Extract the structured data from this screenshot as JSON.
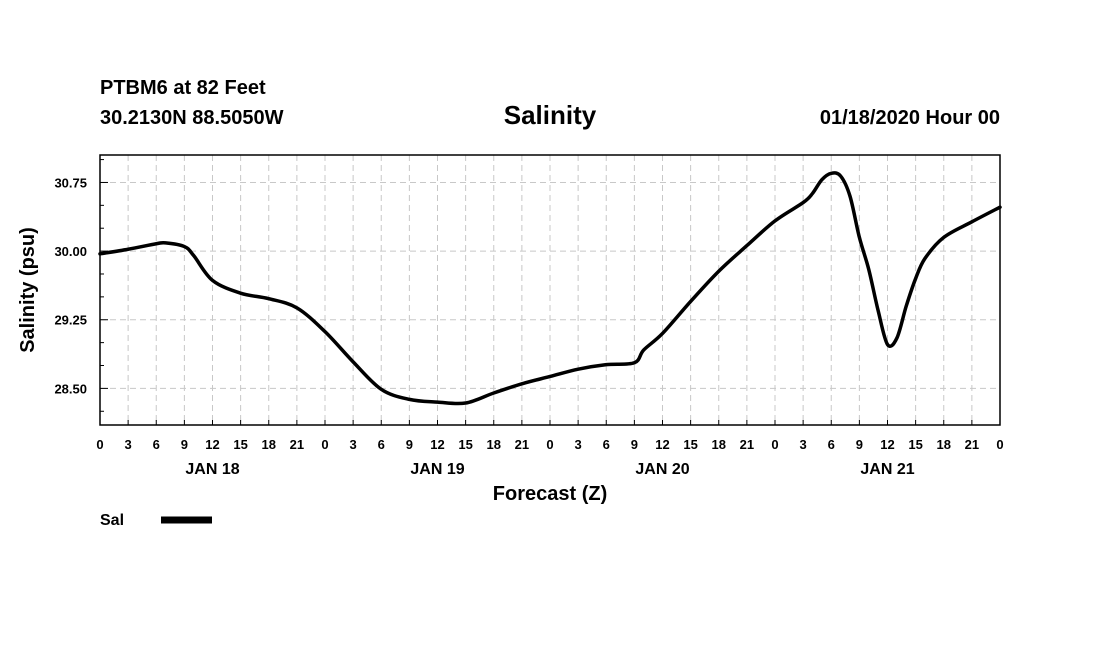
{
  "header": {
    "station": "PTBM6 at 82 Feet",
    "coords": "30.2130N 88.5050W",
    "title": "Salinity",
    "datetime": "01/18/2020 Hour 00"
  },
  "legend": {
    "label": "Sal",
    "color": "#000000"
  },
  "chart_data": {
    "type": "line",
    "title": "Salinity",
    "xlabel": "Forecast (Z)",
    "ylabel": "Salinity (psu)",
    "x_unit": "forecast hours from 01/18/2020 00Z",
    "xlim": [
      0,
      96
    ],
    "ylim": [
      28.1,
      31.05
    ],
    "y_ticks": [
      28.5,
      29.25,
      30.0,
      30.75
    ],
    "y_tick_labels": [
      "28.50",
      "29.25",
      "30.00",
      "30.75"
    ],
    "x_ticks": [
      0,
      3,
      6,
      9,
      12,
      15,
      18,
      21,
      24,
      27,
      30,
      33,
      36,
      39,
      42,
      45,
      48,
      51,
      54,
      57,
      60,
      63,
      66,
      69,
      72,
      75,
      78,
      81,
      84,
      87,
      90,
      93,
      96
    ],
    "x_tick_labels": [
      "0",
      "3",
      "6",
      "9",
      "12",
      "15",
      "18",
      "21",
      "0",
      "3",
      "6",
      "9",
      "12",
      "15",
      "18",
      "21",
      "0",
      "3",
      "6",
      "9",
      "12",
      "15",
      "18",
      "21",
      "0",
      "3",
      "6",
      "9",
      "12",
      "15",
      "18",
      "21",
      "0"
    ],
    "day_labels": [
      {
        "text": "JAN 18",
        "x": 12
      },
      {
        "text": "JAN 19",
        "x": 36
      },
      {
        "text": "JAN 20",
        "x": 60
      },
      {
        "text": "JAN 21",
        "x": 84
      }
    ],
    "grid": true,
    "legend_position": "bottom-left",
    "series": [
      {
        "name": "Sal",
        "color": "#000000",
        "x": [
          0,
          3,
          6,
          7,
          9,
          10,
          12,
          15,
          18,
          21,
          24,
          27,
          30,
          33,
          36,
          39,
          42,
          45,
          48,
          51,
          54,
          57,
          58,
          60,
          63,
          66,
          69,
          72,
          75,
          76,
          77,
          78,
          79,
          80,
          81,
          82,
          83,
          84,
          85,
          86,
          87,
          88,
          90,
          93,
          96
        ],
        "y": [
          29.97,
          30.02,
          30.08,
          30.09,
          30.05,
          29.95,
          29.68,
          29.54,
          29.48,
          29.38,
          29.12,
          28.79,
          28.49,
          28.38,
          28.35,
          28.34,
          28.45,
          28.55,
          28.63,
          28.71,
          28.76,
          28.78,
          28.92,
          29.1,
          29.45,
          29.78,
          30.06,
          30.33,
          30.53,
          30.63,
          30.78,
          30.85,
          30.82,
          30.6,
          30.15,
          29.8,
          29.35,
          28.98,
          29.05,
          29.4,
          29.7,
          29.92,
          30.15,
          30.32,
          30.48
        ]
      }
    ]
  }
}
